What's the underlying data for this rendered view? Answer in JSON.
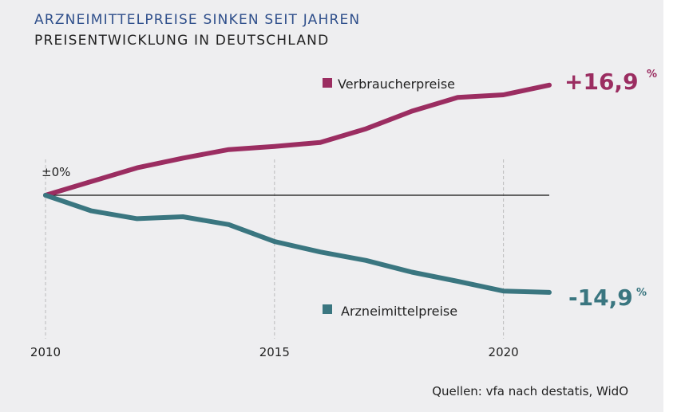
{
  "title": "ARZNEIMITTELPREISE SINKEN SEIT JAHREN",
  "subtitle": "PREISENTWICKLUNG IN DEUTSCHLAND",
  "source": "Quellen: vfa nach destatis, WidO",
  "colors": {
    "background": "#eeeef0",
    "consumer": "#9b2d61",
    "drug": "#3a7680",
    "title": "#2f4f8b",
    "axis": "#111111",
    "grid": "#bbbbbb"
  },
  "chart_data": {
    "type": "line",
    "x": [
      2010,
      2011,
      2012,
      2013,
      2014,
      2015,
      2016,
      2017,
      2018,
      2019,
      2020,
      2021
    ],
    "xticks": [
      2010,
      2015,
      2020
    ],
    "xtick_labels": [
      "2010",
      "2015",
      "2020"
    ],
    "xlim": [
      2010,
      2021
    ],
    "ylim": [
      -20,
      20
    ],
    "grid_vertical": true,
    "baseline": {
      "value": 0,
      "label": "±0%"
    },
    "series": [
      {
        "name": "Verbraucherpreise",
        "color": "#9b2d61",
        "values": [
          0,
          2.1,
          4.2,
          5.7,
          7.0,
          7.5,
          8.1,
          10.2,
          12.9,
          15.0,
          15.4,
          16.9
        ],
        "end_label": "+16,9",
        "end_unit": "%"
      },
      {
        "name": "Arzneimittelpreise",
        "color": "#3a7680",
        "values": [
          0,
          -2.4,
          -3.6,
          -3.3,
          -4.5,
          -7.1,
          -8.7,
          -10.0,
          -11.8,
          -13.2,
          -14.7,
          -14.9
        ],
        "end_label": "-14,9",
        "end_unit": "%"
      }
    ]
  }
}
